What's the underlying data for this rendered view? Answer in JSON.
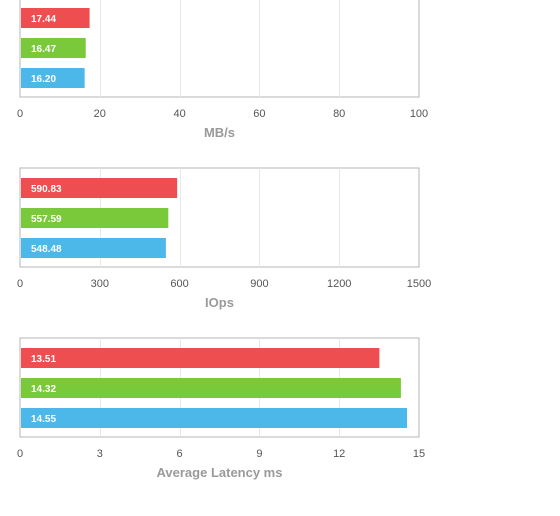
{
  "colors": {
    "series": [
      "#ee4e50",
      "#7ac93a",
      "#4cb8ea"
    ],
    "frame": "#b5b5b5",
    "grid": "#e7e7e7",
    "bar_label": "#ffffff",
    "tick_label": "#555555",
    "axis_title": "#9a9a9a"
  },
  "chart_data": [
    {
      "type": "bar",
      "orientation": "horizontal",
      "values": [
        17.44,
        16.47,
        16.2
      ],
      "labels": [
        "17.44",
        "16.47",
        "16.20"
      ],
      "xlabel": "MB/s",
      "xlim": [
        0,
        100
      ],
      "ticks": [
        0,
        20,
        40,
        60,
        80,
        100
      ],
      "tick_labels": [
        "0",
        "20",
        "40",
        "60",
        "80",
        "100"
      ],
      "grid": true
    },
    {
      "type": "bar",
      "orientation": "horizontal",
      "values": [
        590.83,
        557.59,
        548.48
      ],
      "labels": [
        "590.83",
        "557.59",
        "548.48"
      ],
      "xlabel": "IOps",
      "xlim": [
        0,
        1500
      ],
      "ticks": [
        0,
        300,
        600,
        900,
        1200,
        1500
      ],
      "tick_labels": [
        "0",
        "300",
        "600",
        "900",
        "1200",
        "1500"
      ],
      "grid": true
    },
    {
      "type": "bar",
      "orientation": "horizontal",
      "values": [
        13.51,
        14.32,
        14.55
      ],
      "labels": [
        "13.51",
        "14.32",
        "14.55"
      ],
      "xlabel": "Average Latency ms",
      "xlim": [
        0,
        15
      ],
      "ticks": [
        0,
        3,
        6,
        9,
        12,
        15
      ],
      "tick_labels": [
        "0",
        "3",
        "6",
        "9",
        "12",
        "15"
      ],
      "grid": true
    }
  ]
}
